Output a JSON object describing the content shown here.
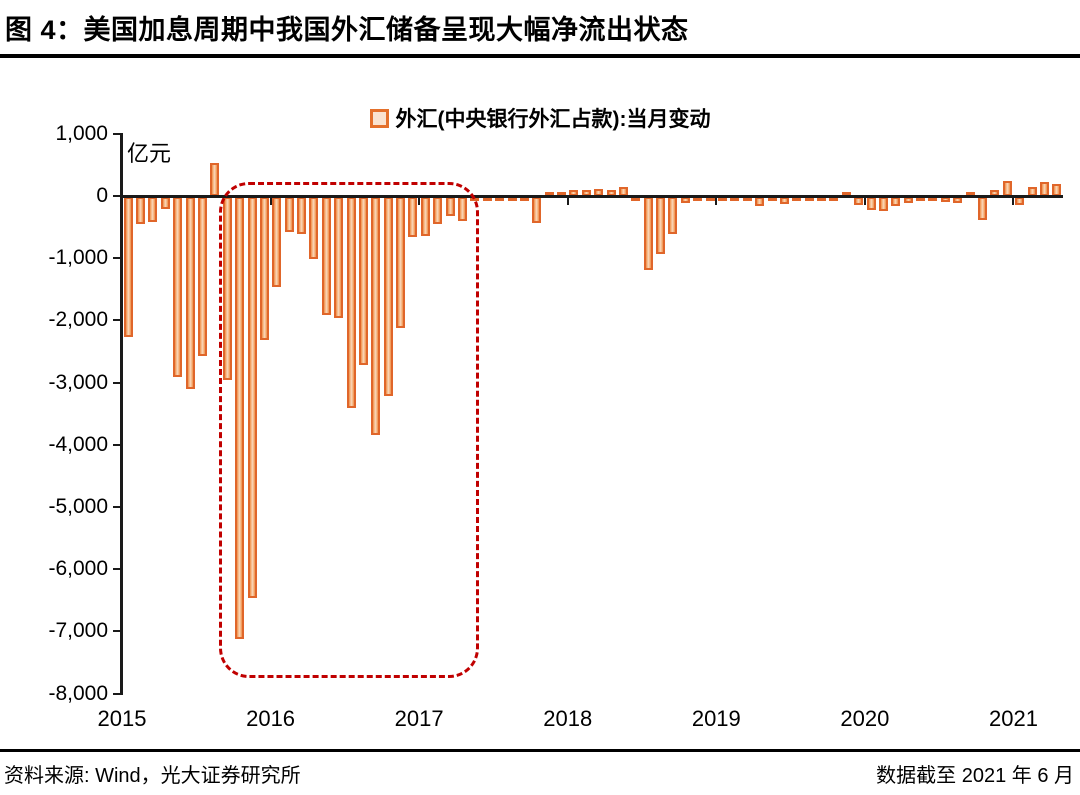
{
  "header": {
    "title": "图 4：美国加息周期中我国外汇储备呈现大幅净流出状态"
  },
  "legend": {
    "label": "外汇(中央银行外汇占款):当月变动"
  },
  "chart_data": {
    "type": "bar",
    "title": "外汇(中央银行外汇占款):当月变动",
    "unit_label": "亿元",
    "ylabel": "亿元",
    "xlabel": "",
    "ylim": [
      -8000,
      1000
    ],
    "ytick_step": 1000,
    "ytick_labels": [
      "1,000",
      "0",
      "-1,000",
      "-2,000",
      "-3,000",
      "-4,000",
      "-5,000",
      "-6,000",
      "-7,000",
      "-8,000"
    ],
    "year_labels": [
      "2015",
      "2016",
      "2017",
      "2018",
      "2019",
      "2020",
      "2021"
    ],
    "grid": false,
    "legend_position": "top-center",
    "bar_border_color": "#E0662A",
    "bar_fill_color": "#F9CDA6",
    "highlight_box_color": "#C00000",
    "highlight_period": {
      "start": "2015-11",
      "end": "2017-06"
    },
    "months": [
      "2015-03",
      "2015-04",
      "2015-05",
      "2015-06",
      "2015-07",
      "2015-08",
      "2015-09",
      "2015-10",
      "2015-11",
      "2015-12",
      "2016-01",
      "2016-02",
      "2016-03",
      "2016-04",
      "2016-05",
      "2016-06",
      "2016-07",
      "2016-08",
      "2016-09",
      "2016-10",
      "2016-11",
      "2016-12",
      "2017-01",
      "2017-02",
      "2017-03",
      "2017-04",
      "2017-05",
      "2017-06",
      "2017-07",
      "2017-08",
      "2017-09",
      "2017-10",
      "2017-11",
      "2017-12",
      "2018-01",
      "2018-02",
      "2018-03",
      "2018-04",
      "2018-05",
      "2018-06",
      "2018-07",
      "2018-08",
      "2018-09",
      "2018-10",
      "2018-11",
      "2018-12",
      "2019-01",
      "2019-02",
      "2019-03",
      "2019-04",
      "2019-05",
      "2019-06",
      "2019-07",
      "2019-08",
      "2019-09",
      "2019-10",
      "2019-11",
      "2019-12",
      "2020-01",
      "2020-02",
      "2020-03",
      "2020-04",
      "2020-05",
      "2020-06",
      "2020-07",
      "2020-08",
      "2020-09",
      "2020-10",
      "2020-11",
      "2020-12",
      "2021-01",
      "2021-02",
      "2021-03",
      "2021-04",
      "2021-05",
      "2021-06"
    ],
    "values": [
      -2250,
      -440,
      -400,
      -190,
      -2900,
      -3080,
      -2550,
      530,
      -2950,
      -7100,
      -6450,
      -2300,
      -1450,
      -570,
      -600,
      -1000,
      -1900,
      -1950,
      -3400,
      -2700,
      -3830,
      -3200,
      -2100,
      -650,
      -630,
      -430,
      -300,
      -390,
      -50,
      -40,
      -40,
      -40,
      -50,
      -410,
      60,
      70,
      100,
      100,
      110,
      100,
      140,
      -60,
      -1180,
      -920,
      -600,
      -90,
      -30,
      -40,
      -30,
      -30,
      -40,
      -150,
      -30,
      -110,
      -40,
      -30,
      -30,
      -40,
      70,
      -130,
      -210,
      -220,
      -150,
      -100,
      -60,
      -60,
      -80,
      -100,
      70,
      -370,
      100,
      240,
      -130,
      150,
      220,
      200
    ]
  },
  "footer": {
    "source": "资料来源: Wind，光大证券研究所",
    "cutoff": "数据截至 2021 年 6 月"
  }
}
